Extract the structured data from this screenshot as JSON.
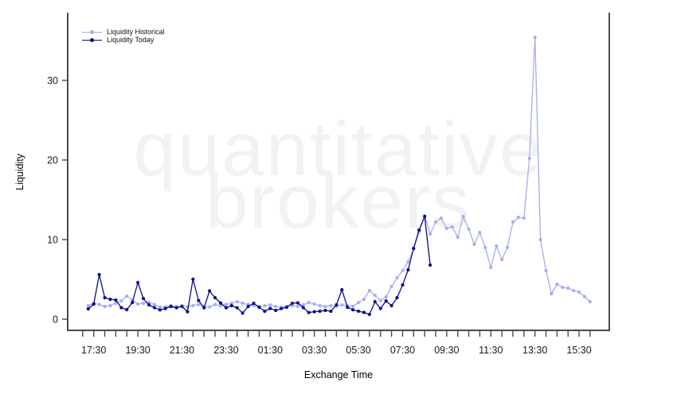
{
  "chart_data": {
    "type": "line",
    "title": "",
    "xlabel": "Exchange Time",
    "ylabel": "Liquidity",
    "watermark_lines": [
      "quantitative",
      "brokers"
    ],
    "x_axis": {
      "tick_labels": [
        "17:30",
        "19:30",
        "21:30",
        "23:30",
        "01:30",
        "03:30",
        "05:30",
        "07:30",
        "09:30",
        "11:30",
        "13:30",
        "15:30"
      ],
      "tick_label_hours": [
        0,
        2,
        4,
        6,
        8,
        10,
        12,
        14,
        16,
        18,
        20,
        22
      ],
      "minor_ticks": {
        "start_hour": -0.5,
        "end_hour": 22.5,
        "step_hours": 0.5
      },
      "xlim_hours": [
        -1.18,
        23.37
      ]
    },
    "y_axis": {
      "tick_labels": [
        "0",
        "10",
        "20",
        "30"
      ],
      "ticks": [
        0,
        10,
        20,
        30
      ],
      "ylim": [
        -1.4,
        38.5
      ]
    },
    "grid": false,
    "legend": {
      "position": "top-left",
      "items": [
        {
          "label": "Liquidity Historical",
          "color": "#a5aeee"
        },
        {
          "label": "Liquidity Today",
          "color": "#0c0c8e"
        }
      ]
    },
    "series": [
      {
        "name": "Liquidity Historical",
        "color": "#a5aeee",
        "marker": "circle",
        "start_hour": -0.25,
        "step_hours": 0.25,
        "values": [
          1.7,
          2.0,
          1.85,
          1.6,
          1.7,
          2.0,
          2.3,
          2.9,
          2.4,
          1.9,
          2.0,
          2.1,
          1.85,
          1.5,
          1.55,
          1.7,
          1.55,
          1.7,
          1.55,
          1.7,
          1.85,
          1.6,
          1.55,
          1.85,
          1.7,
          1.85,
          2.0,
          2.2,
          2.0,
          1.85,
          1.7,
          1.6,
          1.7,
          1.8,
          1.6,
          1.5,
          1.6,
          1.7,
          1.6,
          1.8,
          2.1,
          1.9,
          1.7,
          1.6,
          1.7,
          1.6,
          1.8,
          1.7,
          1.6,
          2.1,
          2.5,
          3.6,
          3.0,
          2.35,
          2.8,
          4.1,
          5.2,
          6.1,
          7.2,
          8.8,
          11.0,
          13.0,
          10.7,
          12.2,
          12.7,
          11.4,
          11.6,
          10.3,
          12.9,
          11.3,
          9.4,
          10.9,
          9.0,
          6.5,
          9.2,
          7.5,
          9.0,
          12.2,
          12.8,
          12.7,
          20.2,
          35.4,
          10.0,
          6.1,
          3.2,
          4.4,
          4.0,
          3.9,
          3.6,
          3.4,
          2.85,
          2.2
        ]
      },
      {
        "name": "Liquidity Today",
        "color": "#0c0c8e",
        "marker": "circle",
        "start_hour": -0.25,
        "step_hours": 0.25,
        "values": [
          1.3,
          1.9,
          5.6,
          2.7,
          2.5,
          2.4,
          1.45,
          1.2,
          2.1,
          4.6,
          2.6,
          1.8,
          1.45,
          1.17,
          1.34,
          1.6,
          1.44,
          1.6,
          0.94,
          5.03,
          2.35,
          1.44,
          3.55,
          2.7,
          2.04,
          1.44,
          1.7,
          1.44,
          0.77,
          1.6,
          2.0,
          1.5,
          1.0,
          1.35,
          1.1,
          1.33,
          1.5,
          2.0,
          2.05,
          1.45,
          0.84,
          0.94,
          1.0,
          1.1,
          1.0,
          1.8,
          3.7,
          1.5,
          1.18,
          1.0,
          0.85,
          0.6,
          2.2,
          1.35,
          2.3,
          1.7,
          2.7,
          4.3,
          6.2,
          8.9,
          11.2,
          12.9,
          6.8
        ]
      }
    ]
  },
  "colors": {
    "background": "#ffffff",
    "axis": "#4a4a4a",
    "tick_label": "#1a1a1a",
    "watermark": "#f2f2f2"
  }
}
